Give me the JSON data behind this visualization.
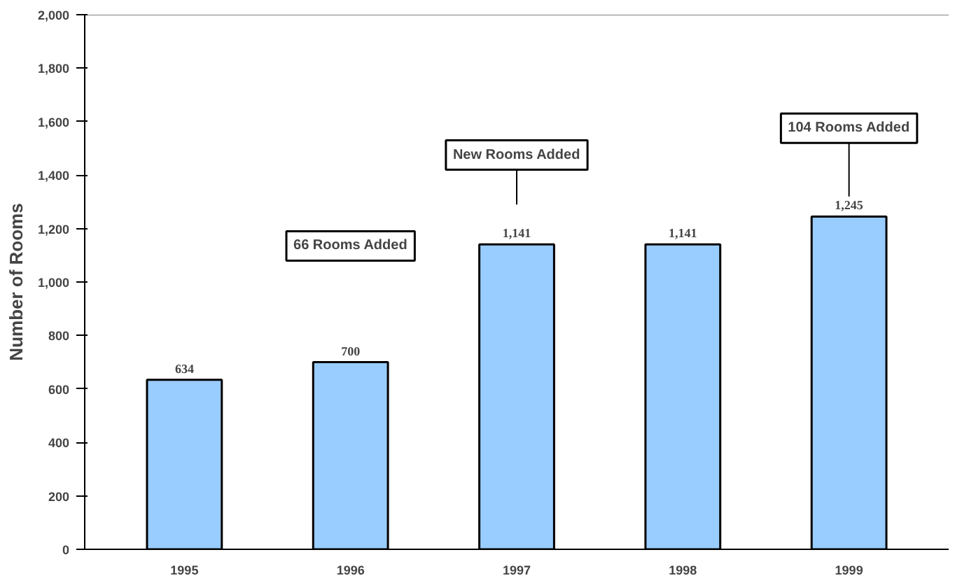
{
  "chart_data": {
    "type": "bar",
    "ylabel": "Number of Rooms",
    "categories": [
      "1995",
      "1996",
      "1997",
      "1998",
      "1999"
    ],
    "values": [
      634,
      700,
      1141,
      1141,
      1245
    ],
    "color": "#99ccff",
    "value_labels": [
      "634",
      "700",
      "1,141",
      "1,141",
      "1,245"
    ],
    "ylim": [
      0,
      2000
    ],
    "yticks": [
      0,
      200,
      400,
      600,
      800,
      {
        "value": 1000,
        "label": "1,000"
      },
      {
        "value": 1200,
        "label": "1,200"
      },
      {
        "value": 1400,
        "label": "1,400"
      },
      {
        "value": 1600,
        "label": "1,600"
      },
      {
        "value": 1800,
        "label": "1,800"
      },
      {
        "value": 2000,
        "label": "2,000"
      }
    ],
    "grid": false,
    "annotations": [
      "66 Rooms Added",
      "New Rooms Added",
      "104 Rooms Added"
    ]
  }
}
